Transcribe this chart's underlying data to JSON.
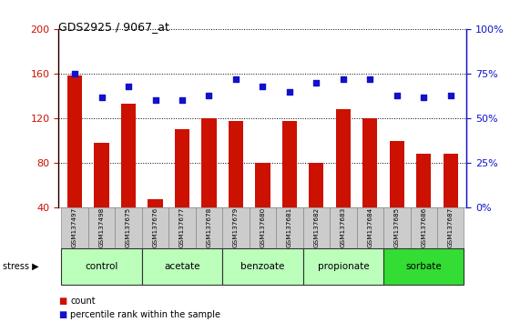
{
  "title": "GDS2925 / 9067_at",
  "samples": [
    "GSM137497",
    "GSM137498",
    "GSM137675",
    "GSM137676",
    "GSM137677",
    "GSM137678",
    "GSM137679",
    "GSM137680",
    "GSM137681",
    "GSM137682",
    "GSM137683",
    "GSM137684",
    "GSM137685",
    "GSM137686",
    "GSM137687"
  ],
  "counts": [
    158,
    98,
    133,
    48,
    110,
    120,
    118,
    80,
    118,
    80,
    128,
    120,
    100,
    88,
    88
  ],
  "percentiles": [
    75,
    62,
    68,
    60,
    60,
    63,
    72,
    68,
    65,
    70,
    72,
    72,
    63,
    62,
    63
  ],
  "groups": [
    {
      "label": "control",
      "start": 0,
      "end": 2,
      "color": "#bbffbb"
    },
    {
      "label": "acetate",
      "start": 3,
      "end": 5,
      "color": "#bbffbb"
    },
    {
      "label": "benzoate",
      "start": 6,
      "end": 8,
      "color": "#bbffbb"
    },
    {
      "label": "propionate",
      "start": 9,
      "end": 11,
      "color": "#bbffbb"
    },
    {
      "label": "sorbate",
      "start": 12,
      "end": 14,
      "color": "#33dd33"
    }
  ],
  "bar_color": "#cc1100",
  "dot_color": "#1111cc",
  "ylim_left": [
    40,
    200
  ],
  "ylim_right": [
    0,
    100
  ],
  "yticks_left": [
    40,
    80,
    120,
    160,
    200
  ],
  "yticks_right": [
    0,
    25,
    50,
    75,
    100
  ],
  "bar_width": 0.55,
  "background_color": "#ffffff",
  "stress_label": "stress"
}
